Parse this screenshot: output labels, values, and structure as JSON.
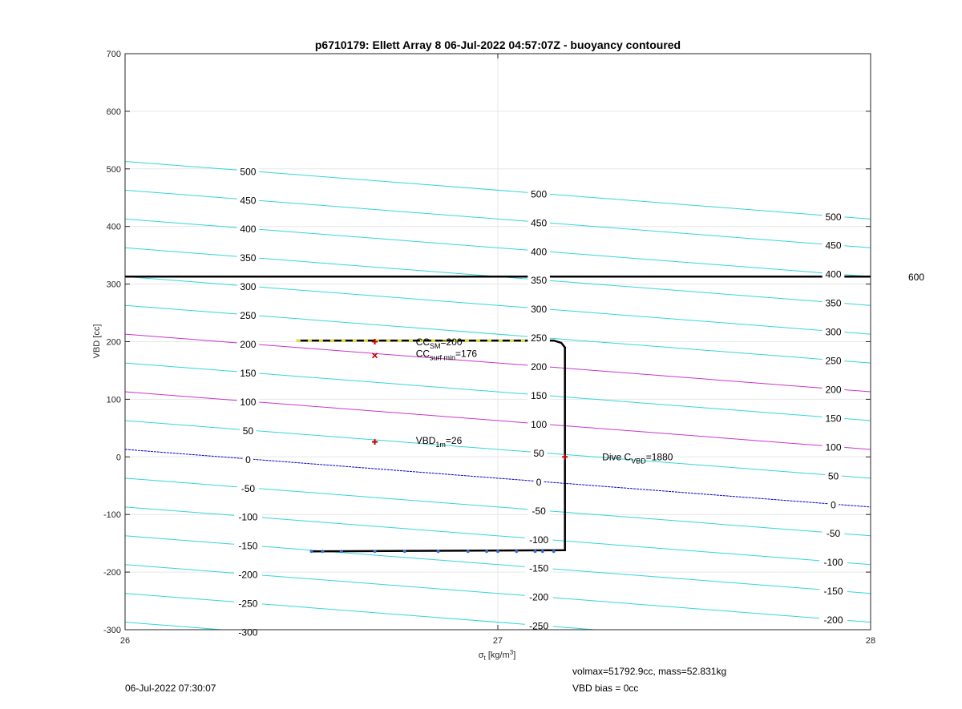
{
  "chart_data": {
    "type": "line",
    "title": "p6710179: Ellett Array 8 06-Jul-2022 04:57:07Z - buoyancy contoured",
    "xlabel_symbol": "σ",
    "xlabel_sub": "t",
    "xlabel_unit": " [kg/m",
    "xlabel_sup": "3",
    "xlabel_close": "]",
    "ylabel": "VBD [cc]",
    "xlim": [
      26,
      28
    ],
    "ylim": [
      -300,
      700
    ],
    "xticks": [
      26,
      27,
      28
    ],
    "yticks": [
      -300,
      -200,
      -100,
      0,
      100,
      200,
      300,
      400,
      500,
      600,
      700
    ],
    "grid": true,
    "contours": {
      "slope_cc_per_sigma": -50,
      "intercept_at_26": 13,
      "levels": [
        -300,
        -250,
        -200,
        -150,
        -100,
        -50,
        0,
        50,
        100,
        150,
        200,
        250,
        300,
        350,
        400,
        450,
        500
      ],
      "highlight_levels": {
        "0": "#0000cc",
        "100": "#cc33cc",
        "200": "#cc33cc"
      },
      "default_color": "#33d6d6",
      "label_columns": [
        {
          "x": 26.33,
          "levels": [
            -300,
            -250,
            -200,
            -150,
            -100,
            -50,
            0,
            50,
            100,
            150,
            200,
            250,
            300,
            350,
            400,
            450,
            500
          ]
        },
        {
          "x": 27.11,
          "levels": [
            -250,
            -200,
            -150,
            -100,
            -50,
            0,
            50,
            100,
            150,
            200,
            250,
            300,
            350,
            400,
            450,
            500
          ]
        },
        {
          "x": 27.9,
          "levels": [
            -200,
            -150,
            -100,
            -50,
            0,
            50,
            100,
            150,
            200,
            250,
            300,
            350,
            400,
            450,
            500
          ]
        }
      ]
    },
    "max_line": {
      "y": 313,
      "label": "600"
    },
    "series": [
      {
        "points": [
          [
            26.46,
            202
          ],
          [
            27.15,
            202
          ],
          [
            27.17,
            198
          ],
          [
            27.18,
            190
          ],
          [
            27.18,
            -162
          ],
          [
            26.5,
            -164
          ]
        ],
        "color": "#000000"
      },
      {
        "points": [
          [
            26.46,
            202
          ],
          [
            27.15,
            202
          ]
        ],
        "color": "#e6e600",
        "dashed": true
      },
      {
        "points": [
          [
            26.5,
            -164
          ],
          [
            26.53,
            -164
          ],
          [
            26.58,
            -164
          ],
          [
            26.67,
            -164
          ],
          [
            26.75,
            -164
          ],
          [
            26.84,
            -164
          ],
          [
            26.92,
            -164
          ],
          [
            26.97,
            -164
          ],
          [
            27.0,
            -164
          ],
          [
            27.05,
            -164
          ],
          [
            27.1,
            -164
          ],
          [
            27.12,
            -164
          ],
          [
            27.15,
            -164
          ]
        ],
        "color": "#3a6fd8",
        "markers_only": true
      }
    ],
    "markers": [
      {
        "x": 26.67,
        "y": 200,
        "symbol": "+",
        "color": "#cc0000"
      },
      {
        "x": 26.67,
        "y": 176,
        "symbol": "x",
        "color": "#cc0000"
      },
      {
        "x": 26.67,
        "y": 26,
        "symbol": "+",
        "color": "#cc0000"
      },
      {
        "x": 27.18,
        "y": 0,
        "symbol": "+",
        "color": "#cc0000"
      }
    ],
    "annotations": [
      {
        "x": 26.78,
        "y": 199,
        "main": "CC",
        "sub": "SM",
        "tail": "=200"
      },
      {
        "x": 26.78,
        "y": 179,
        "main": "CC",
        "sub": "surf min",
        "tail": "=176"
      },
      {
        "x": 26.78,
        "y": 28,
        "main": "VBD",
        "sub": "1m",
        "tail": "=26"
      },
      {
        "x": 27.28,
        "y": 0,
        "main": "Dive C",
        "sub": "VBD",
        "tail": "=1880"
      }
    ]
  },
  "footer": {
    "timestamp": "06-Jul-2022 07:30:07",
    "volmax": "volmax=51792.9cc, mass=52.831kg",
    "bias": "VBD bias = 0cc"
  }
}
